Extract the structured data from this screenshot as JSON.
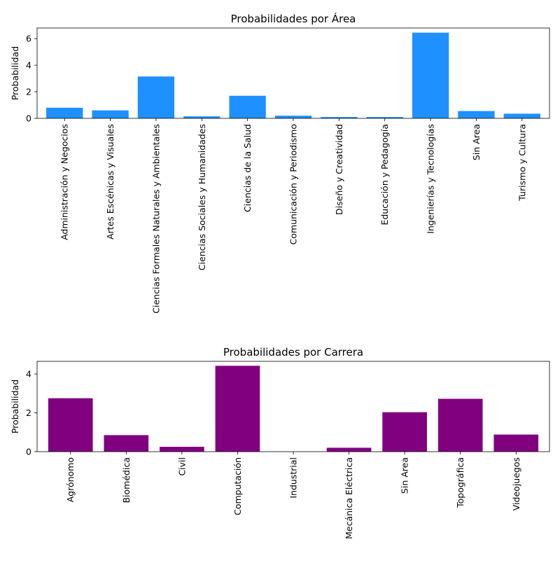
{
  "chart_data": [
    {
      "type": "bar",
      "title": "Probabilidades por Área",
      "xlabel": "",
      "ylabel": "Probabilidad",
      "ylim": [
        0,
        6.8
      ],
      "yticks": [
        0,
        2,
        4,
        6
      ],
      "color": "#1e90ff",
      "categories": [
        "Administración y Negocios",
        "Artes Escénicas y Visuales",
        "Ciencias Formales Naturales y Ambientales",
        "Ciencias Sociales y Humanidades",
        "Ciencias de la Salud",
        "Comunicación y Periodismo",
        "Diseño y Creatividad",
        "Educación y Pedagogía",
        "Ingenierías y Tecnologías",
        "Sin Area",
        "Turismo y Cultura"
      ],
      "values": [
        0.8,
        0.6,
        3.15,
        0.15,
        1.7,
        0.2,
        0.1,
        0.1,
        6.45,
        0.55,
        0.35
      ]
    },
    {
      "type": "bar",
      "title": "Probabilidades por Carrera",
      "xlabel": "",
      "ylabel": "Probabilidad",
      "ylim": [
        0,
        4.65
      ],
      "yticks": [
        0,
        2,
        4
      ],
      "color": "#800080",
      "categories": [
        "Agrónomo",
        "Biomédica",
        "Civil",
        "Computación",
        "Industrial",
        "Mecánica Eléctrica",
        "Sin Area",
        "Topográfica",
        "Videojuegos"
      ],
      "values": [
        2.75,
        0.85,
        0.25,
        4.42,
        0.0,
        0.2,
        2.03,
        2.72,
        0.88
      ]
    }
  ]
}
